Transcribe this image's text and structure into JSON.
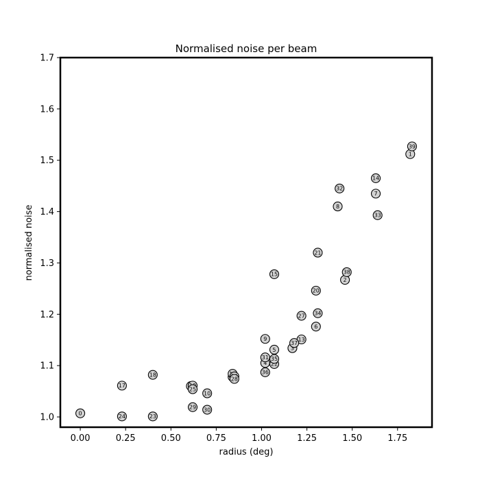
{
  "chart_data": {
    "type": "scatter",
    "title": "Normalised noise per beam",
    "xlabel": "radius (deg)",
    "ylabel": "normalised noise",
    "xlim": [
      -0.11,
      1.94
    ],
    "ylim": [
      0.98,
      1.7
    ],
    "xticks": [
      0.0,
      0.25,
      0.5,
      0.75,
      1.0,
      1.25,
      1.5,
      1.75
    ],
    "xtick_labels": [
      "0.00",
      "0.25",
      "0.50",
      "0.75",
      "1.00",
      "1.25",
      "1.50",
      "1.75"
    ],
    "yticks": [
      1.0,
      1.1,
      1.2,
      1.3,
      1.4,
      1.5,
      1.6,
      1.7
    ],
    "ytick_labels": [
      "1.0",
      "1.1",
      "1.2",
      "1.3",
      "1.4",
      "1.5",
      "1.6",
      "1.7"
    ],
    "grid": false,
    "marker_fill": "#d3d3d3",
    "marker_edge": "#000000",
    "points": [
      {
        "label": "0",
        "x": 0.0,
        "y": 1.007
      },
      {
        "label": "1",
        "x": 1.82,
        "y": 1.512
      },
      {
        "label": "2",
        "x": 1.46,
        "y": 1.267
      },
      {
        "label": "3",
        "x": 1.17,
        "y": 1.134
      },
      {
        "label": "4",
        "x": 1.02,
        "y": 1.105
      },
      {
        "label": "5",
        "x": 1.07,
        "y": 1.131
      },
      {
        "label": "6",
        "x": 1.3,
        "y": 1.176
      },
      {
        "label": "7",
        "x": 1.63,
        "y": 1.435
      },
      {
        "label": "8",
        "x": 1.42,
        "y": 1.41
      },
      {
        "label": "9",
        "x": 1.02,
        "y": 1.152
      },
      {
        "label": "10",
        "x": 0.7,
        "y": 1.046
      },
      {
        "label": "11",
        "x": 0.84,
        "y": 1.078
      },
      {
        "label": "12",
        "x": 0.84,
        "y": 1.084
      },
      {
        "label": "13",
        "x": 1.22,
        "y": 1.151
      },
      {
        "label": "14",
        "x": 1.63,
        "y": 1.465
      },
      {
        "label": "15",
        "x": 1.07,
        "y": 1.278
      },
      {
        "label": "16",
        "x": 0.61,
        "y": 1.06
      },
      {
        "label": "17",
        "x": 0.23,
        "y": 1.061
      },
      {
        "label": "18",
        "x": 0.4,
        "y": 1.082
      },
      {
        "label": "19",
        "x": 0.62,
        "y": 1.061
      },
      {
        "label": "20",
        "x": 1.3,
        "y": 1.246
      },
      {
        "label": "21",
        "x": 1.31,
        "y": 1.32
      },
      {
        "label": "22",
        "x": 1.07,
        "y": 1.103
      },
      {
        "label": "23",
        "x": 0.4,
        "y": 1.001
      },
      {
        "label": "24",
        "x": 0.23,
        "y": 1.001
      },
      {
        "label": "25",
        "x": 0.62,
        "y": 1.054
      },
      {
        "label": "26",
        "x": 0.85,
        "y": 1.079
      },
      {
        "label": "27",
        "x": 1.22,
        "y": 1.197
      },
      {
        "label": "28",
        "x": 0.85,
        "y": 1.074
      },
      {
        "label": "29",
        "x": 0.62,
        "y": 1.019
      },
      {
        "label": "30",
        "x": 0.7,
        "y": 1.014
      },
      {
        "label": "31",
        "x": 1.02,
        "y": 1.116
      },
      {
        "label": "32",
        "x": 1.43,
        "y": 1.445
      },
      {
        "label": "33",
        "x": 1.64,
        "y": 1.393
      },
      {
        "label": "34",
        "x": 1.31,
        "y": 1.202
      },
      {
        "label": "35",
        "x": 1.07,
        "y": 1.113
      },
      {
        "label": "36",
        "x": 1.02,
        "y": 1.087
      },
      {
        "label": "37",
        "x": 1.18,
        "y": 1.144
      },
      {
        "label": "38",
        "x": 1.47,
        "y": 1.282
      },
      {
        "label": "39",
        "x": 1.83,
        "y": 1.527
      }
    ]
  }
}
